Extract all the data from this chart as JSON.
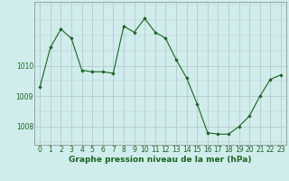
{
  "hours": [
    0,
    1,
    2,
    3,
    4,
    5,
    6,
    7,
    8,
    9,
    10,
    11,
    12,
    13,
    14,
    15,
    16,
    17,
    18,
    19,
    20,
    21,
    22,
    23
  ],
  "pressure": [
    1009.3,
    1010.6,
    1011.2,
    1010.9,
    1009.85,
    1009.8,
    1009.8,
    1009.75,
    1011.3,
    1011.1,
    1011.55,
    1011.1,
    1010.9,
    1010.2,
    1009.6,
    1008.75,
    1007.8,
    1007.75,
    1007.75,
    1008.0,
    1008.35,
    1009.0,
    1009.55,
    1009.7
  ],
  "line_color": "#1a6620",
  "marker_color": "#1a6620",
  "bg_color": "#d0ecec",
  "grid_color": "#aabbbb",
  "ylabel_ticks": [
    1008,
    1009,
    1010
  ],
  "xlabel": "Graphe pression niveau de la mer (hPa)",
  "ylim_min": 1007.4,
  "ylim_max": 1012.1,
  "xlabel_fontsize": 6.5,
  "tick_fontsize": 5.5
}
